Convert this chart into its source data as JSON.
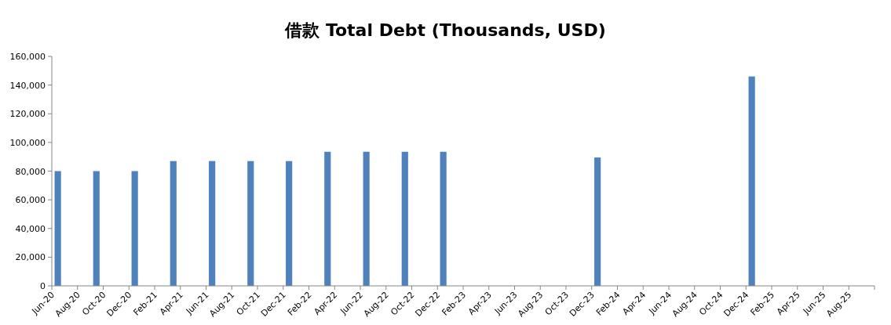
{
  "chart_data": {
    "type": "bar",
    "title": "借款 Total Debt (Thousands, USD)",
    "x": [
      "2020-06-15",
      "2020-09-15",
      "2020-12-15",
      "2021-03-15",
      "2021-06-15",
      "2021-09-15",
      "2021-12-15",
      "2022-03-15",
      "2022-06-15",
      "2022-09-15",
      "2022-12-15",
      "2023-12-15",
      "2024-12-15"
    ],
    "values": [
      80000,
      80000,
      80000,
      87000,
      87000,
      87000,
      87000,
      93500,
      93500,
      93500,
      93500,
      89500,
      146000
    ],
    "color": "#4f81bd",
    "xlim": [
      "2020-06",
      "2025-10"
    ],
    "xticks": [
      {
        "value": "2020-06",
        "label": "Jun-20"
      },
      {
        "value": "2020-08",
        "label": "Aug-20"
      },
      {
        "value": "2020-10",
        "label": "Oct-20"
      },
      {
        "value": "2020-12",
        "label": "Dec-20"
      },
      {
        "value": "2021-02",
        "label": "Feb-21"
      },
      {
        "value": "2021-04",
        "label": "Apr-21"
      },
      {
        "value": "2021-06",
        "label": "Jun-21"
      },
      {
        "value": "2021-08",
        "label": "Aug-21"
      },
      {
        "value": "2021-10",
        "label": "Oct-21"
      },
      {
        "value": "2021-12",
        "label": "Dec-21"
      },
      {
        "value": "2022-02",
        "label": "Feb-22"
      },
      {
        "value": "2022-04",
        "label": "Apr-22"
      },
      {
        "value": "2022-06",
        "label": "Jun-22"
      },
      {
        "value": "2022-08",
        "label": "Aug-22"
      },
      {
        "value": "2022-10",
        "label": "Oct-22"
      },
      {
        "value": "2022-12",
        "label": "Dec-22"
      },
      {
        "value": "2023-02",
        "label": "Feb-23"
      },
      {
        "value": "2023-04",
        "label": "Apr-23"
      },
      {
        "value": "2023-06",
        "label": "Jun-23"
      },
      {
        "value": "2023-08",
        "label": "Aug-23"
      },
      {
        "value": "2023-10",
        "label": "Oct-23"
      },
      {
        "value": "2023-12",
        "label": "Dec-23"
      },
      {
        "value": "2024-02",
        "label": "Feb-24"
      },
      {
        "value": "2024-04",
        "label": "Apr-24"
      },
      {
        "value": "2024-06",
        "label": "Jun-24"
      },
      {
        "value": "2024-08",
        "label": "Aug-24"
      },
      {
        "value": "2024-10",
        "label": "Oct-24"
      },
      {
        "value": "2024-12",
        "label": "Dec-24"
      },
      {
        "value": "2025-02",
        "label": "Feb-25"
      },
      {
        "value": "2025-04",
        "label": "Apr-25"
      },
      {
        "value": "2025-06",
        "label": "Jun-25"
      },
      {
        "value": "2025-08",
        "label": "Aug-25"
      },
      {
        "value": "2025-10",
        "label": null
      }
    ],
    "ylim": [
      0,
      160000
    ],
    "yticks": [
      {
        "value": 0,
        "label": "0"
      },
      {
        "value": 20000,
        "label": "20,000"
      },
      {
        "value": 40000,
        "label": "40,000"
      },
      {
        "value": 60000,
        "label": "60,000"
      },
      {
        "value": 80000,
        "label": "80,000"
      },
      {
        "value": 100000,
        "label": "100,000"
      },
      {
        "value": 120000,
        "label": "120,000"
      },
      {
        "value": 140000,
        "label": "140,000"
      },
      {
        "value": 160000,
        "label": "160,000"
      }
    ]
  }
}
